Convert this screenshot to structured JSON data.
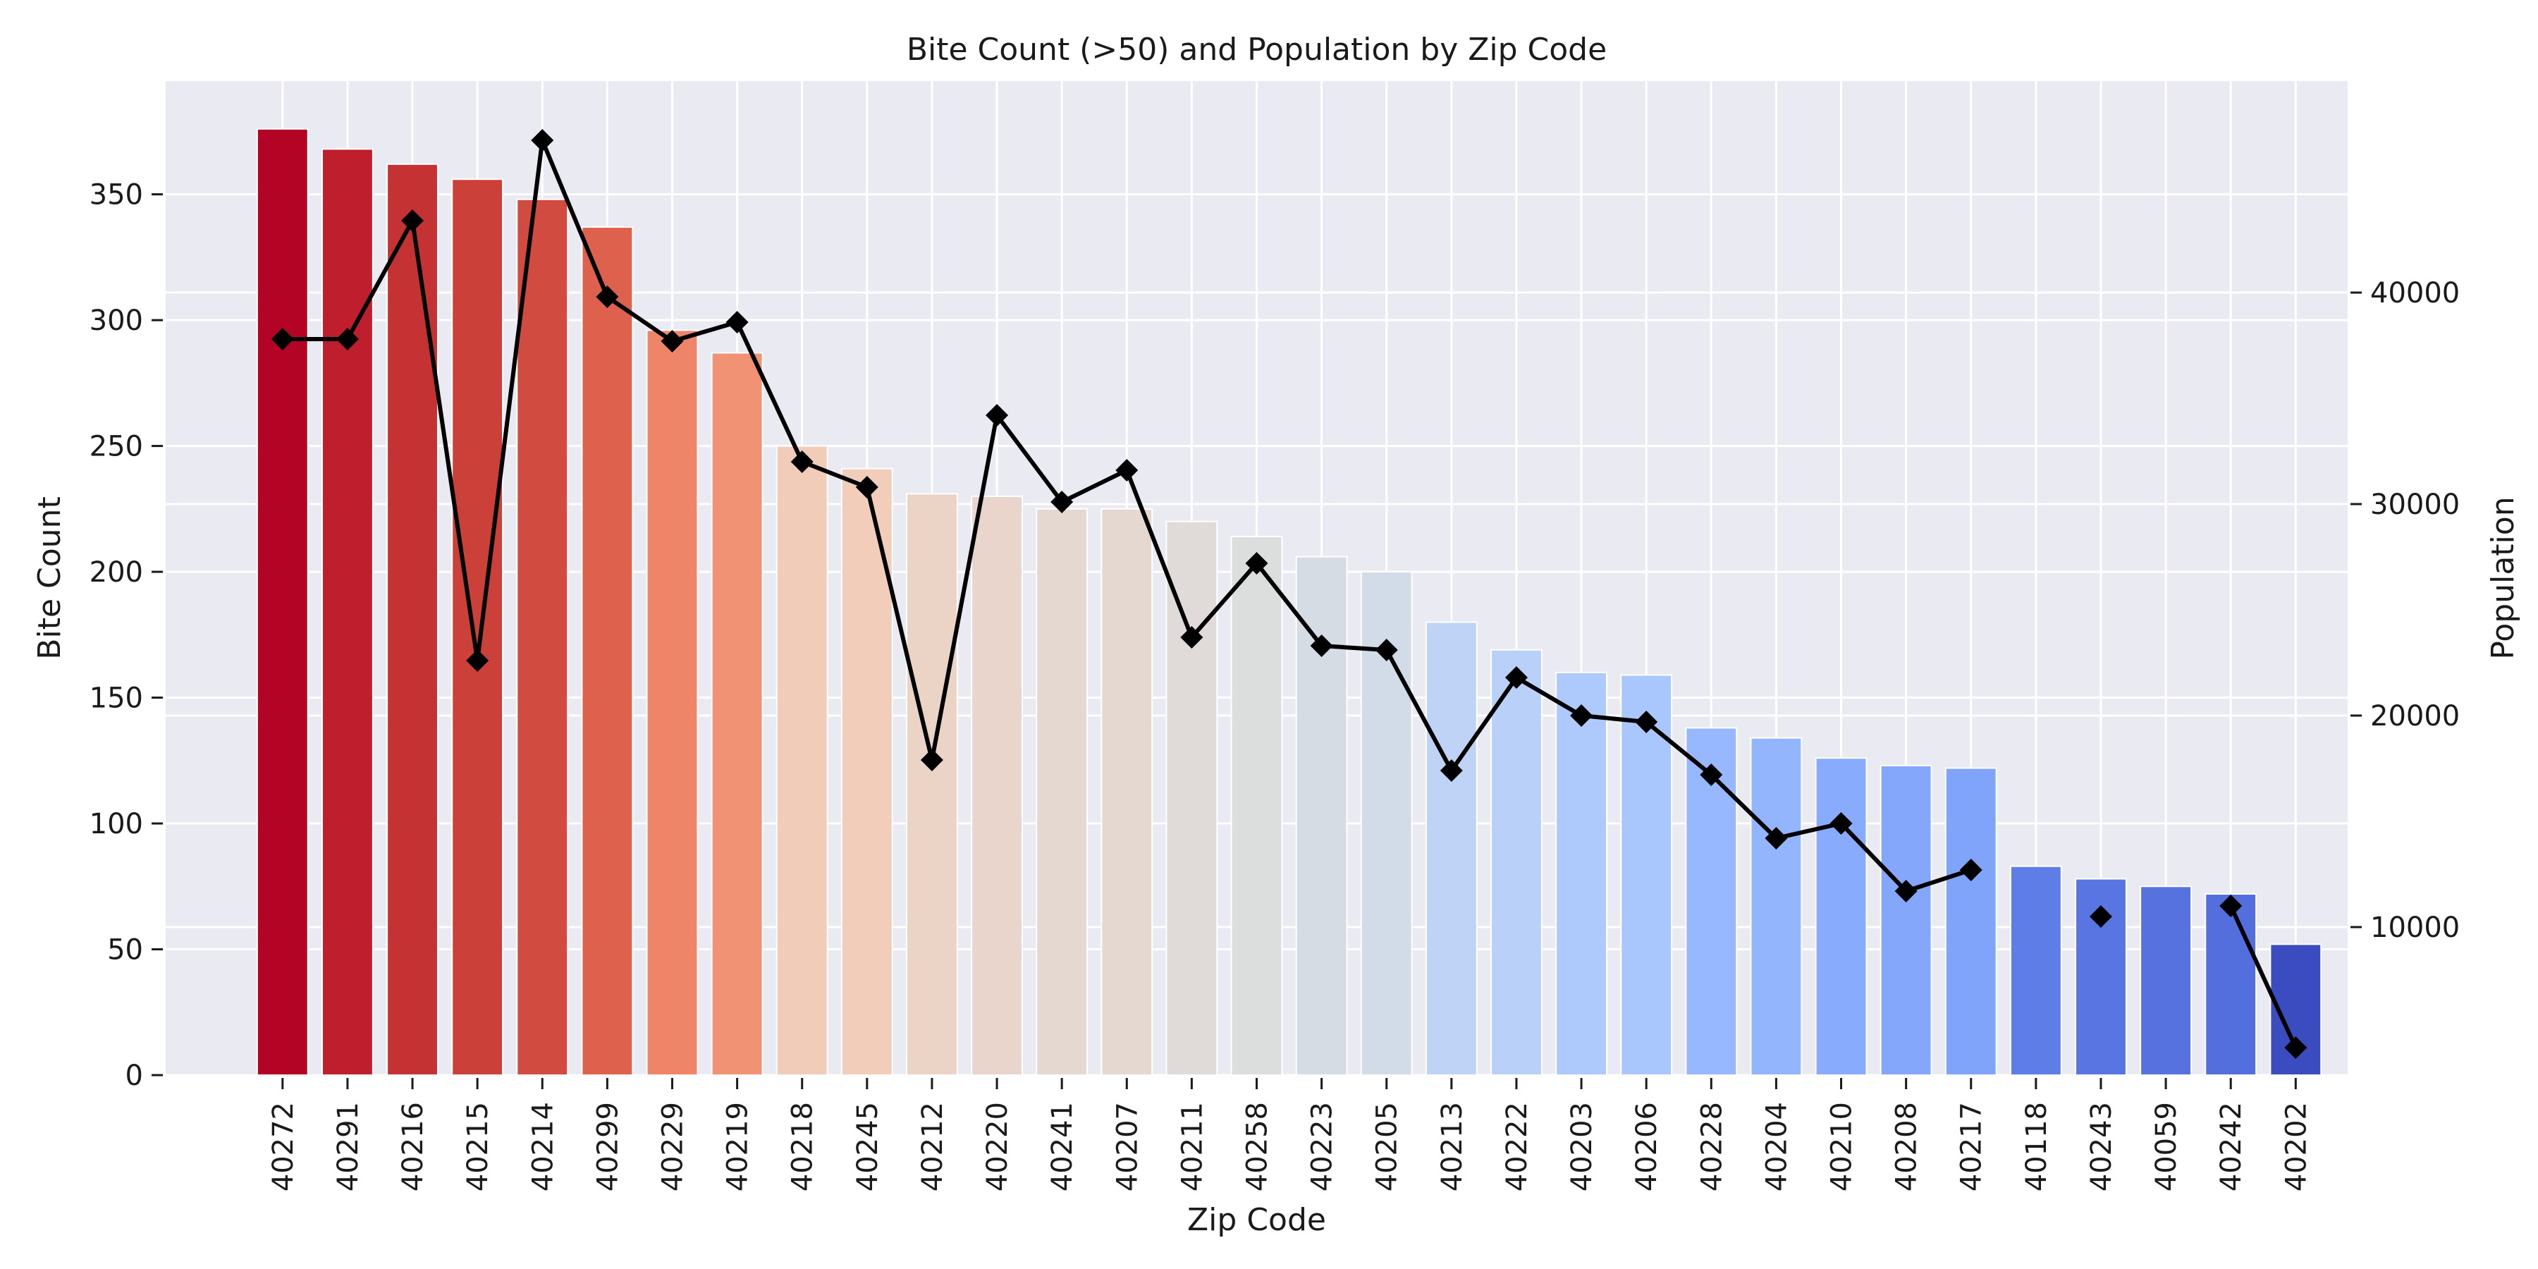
{
  "chart_data": {
    "type": "bar",
    "title": "Bite Count (>50) and Population by Zip Code",
    "xlabel": "Zip Code",
    "ylabel": "Bite Count",
    "ylabel_right": "Population",
    "categories": [
      "40272",
      "40291",
      "40216",
      "40215",
      "40214",
      "40299",
      "40229",
      "40219",
      "40218",
      "40245",
      "40212",
      "40220",
      "40241",
      "40207",
      "40211",
      "40258",
      "40223",
      "40205",
      "40213",
      "40222",
      "40203",
      "40206",
      "40228",
      "40204",
      "40210",
      "40208",
      "40217",
      "40118",
      "40243",
      "40059",
      "40242",
      "40202"
    ],
    "series": [
      {
        "name": "Bite Count",
        "type": "bar",
        "axis": "left",
        "values": [
          376,
          368,
          362,
          356,
          348,
          337,
          296,
          287,
          250,
          241,
          231,
          230,
          225,
          225,
          220,
          214,
          206,
          200,
          180,
          169,
          160,
          159,
          138,
          134,
          126,
          123,
          122,
          83,
          78,
          75,
          72,
          52
        ]
      },
      {
        "name": "Population",
        "type": "line",
        "axis": "right",
        "marker": "diamond",
        "color": "#000000",
        "values": [
          37800,
          37800,
          43400,
          22600,
          47200,
          39800,
          37700,
          38600,
          32000,
          30800,
          17900,
          34200,
          30100,
          31600,
          23700,
          27200,
          23300,
          23100,
          17400,
          21800,
          20000,
          19700,
          17200,
          14200,
          14900,
          11700,
          12700,
          null,
          10500,
          null,
          11000,
          4300
        ]
      }
    ],
    "ylim": [
      0,
      395
    ],
    "yticks": [
      0,
      50,
      100,
      150,
      200,
      250,
      300,
      350
    ],
    "ylim_right": [
      3000,
      50000
    ],
    "yticks_right": [
      10000,
      20000,
      30000,
      40000
    ],
    "grid": true,
    "legend": "none",
    "colors": {
      "background": "#eaeaf2",
      "grid": "#ffffff",
      "line": "#000000",
      "bars": [
        "#b40426",
        "#bf1e2d",
        "#c53234",
        "#cc403a",
        "#d24b40",
        "#de614d",
        "#ee8468",
        "#f29274",
        "#f1ccb8",
        "#f1cdba",
        "#ebd3c6",
        "#e9d5cb",
        "#e5d8d1",
        "#e5d8d1",
        "#e0dbd8",
        "#dcdddd",
        "#d6dce4",
        "#d2dbe8",
        "#bfd3f6",
        "#b9d0f9",
        "#aec9fc",
        "#aac7fd",
        "#97b8ff",
        "#93b5fe",
        "#88abfd",
        "#84a7fc",
        "#81a4fb",
        "#5e7de7",
        "#5875e1",
        "#5572df",
        "#536edd",
        "#3b4cc0"
      ]
    }
  }
}
